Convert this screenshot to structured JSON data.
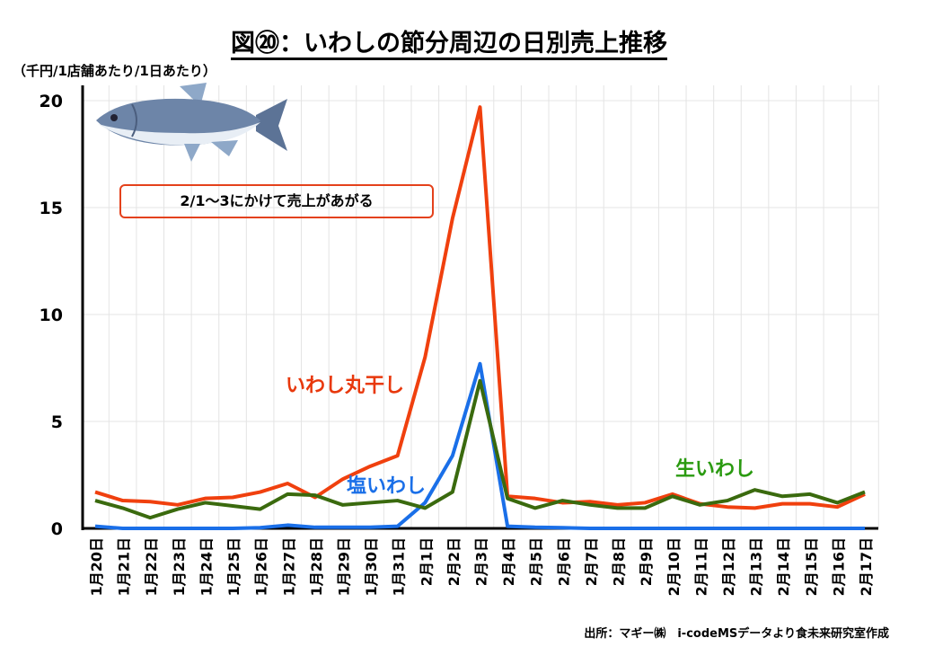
{
  "title": "図⑳：いわしの節分周辺の日別売上推移",
  "unit": "（千円/1店舗あたり/1日あたり）",
  "annotation": "2/1～3にかけて売上があがる",
  "source": "出所：マギー㈱　i-codeMSデータより食未来研究室作成",
  "chart_data": {
    "type": "line",
    "title": "図⑳：いわしの節分周辺の日別売上推移",
    "ylabel": "（千円/1店舗あたり/1日あたり）",
    "ylim": [
      0,
      20
    ],
    "yticks": [
      "0",
      "5",
      "10",
      "15",
      "20"
    ],
    "grid": true,
    "categories": [
      "1月20日",
      "1月21日",
      "1月22日",
      "1月23日",
      "1月24日",
      "1月25日",
      "1月26日",
      "1月27日",
      "1月28日",
      "1月29日",
      "1月30日",
      "1月31日",
      "2月1日",
      "2月2日",
      "2月3日",
      "2月4日",
      "2月5日",
      "2月6日",
      "2月7日",
      "2月8日",
      "2月9日",
      "2月10日",
      "2月11日",
      "2月12日",
      "2月13日",
      "2月14日",
      "2月15日",
      "2月16日",
      "2月17日"
    ],
    "series": [
      {
        "name": "いわし丸干し",
        "color": "#f0400e",
        "values": [
          1.7,
          1.3,
          1.25,
          1.1,
          1.4,
          1.45,
          1.7,
          2.1,
          1.45,
          2.3,
          2.9,
          3.4,
          8.0,
          14.5,
          19.7,
          1.5,
          1.4,
          1.2,
          1.25,
          1.1,
          1.2,
          1.6,
          1.15,
          1.0,
          0.95,
          1.15,
          1.15,
          1.0,
          1.6
        ]
      },
      {
        "name": "塩いわし",
        "color": "#1a6fe8",
        "values": [
          0.1,
          0,
          0,
          0,
          0,
          0,
          0.03,
          0.15,
          0.05,
          0.05,
          0.05,
          0.1,
          1.2,
          3.4,
          7.7,
          0.1,
          0.05,
          0.03,
          0,
          0,
          0,
          0,
          0,
          0,
          0,
          0,
          0,
          0,
          0
        ]
      },
      {
        "name": "生いわし",
        "color": "#3a6a0e",
        "values": [
          1.3,
          0.95,
          0.5,
          0.9,
          1.2,
          1.05,
          0.9,
          1.6,
          1.55,
          1.1,
          1.2,
          1.3,
          0.95,
          1.7,
          6.9,
          1.4,
          0.95,
          1.3,
          1.1,
          0.95,
          0.95,
          1.5,
          1.1,
          1.3,
          1.8,
          1.5,
          1.6,
          1.2,
          1.7
        ]
      }
    ],
    "labels": [
      {
        "series": "いわし丸干し",
        "text": "いわし丸干し",
        "color": "#e8380c"
      },
      {
        "series": "塩いわし",
        "text": "塩いわし",
        "color": "#1a6fe8"
      },
      {
        "series": "生いわし",
        "text": "生いわし",
        "color": "#2a9a10"
      }
    ]
  }
}
